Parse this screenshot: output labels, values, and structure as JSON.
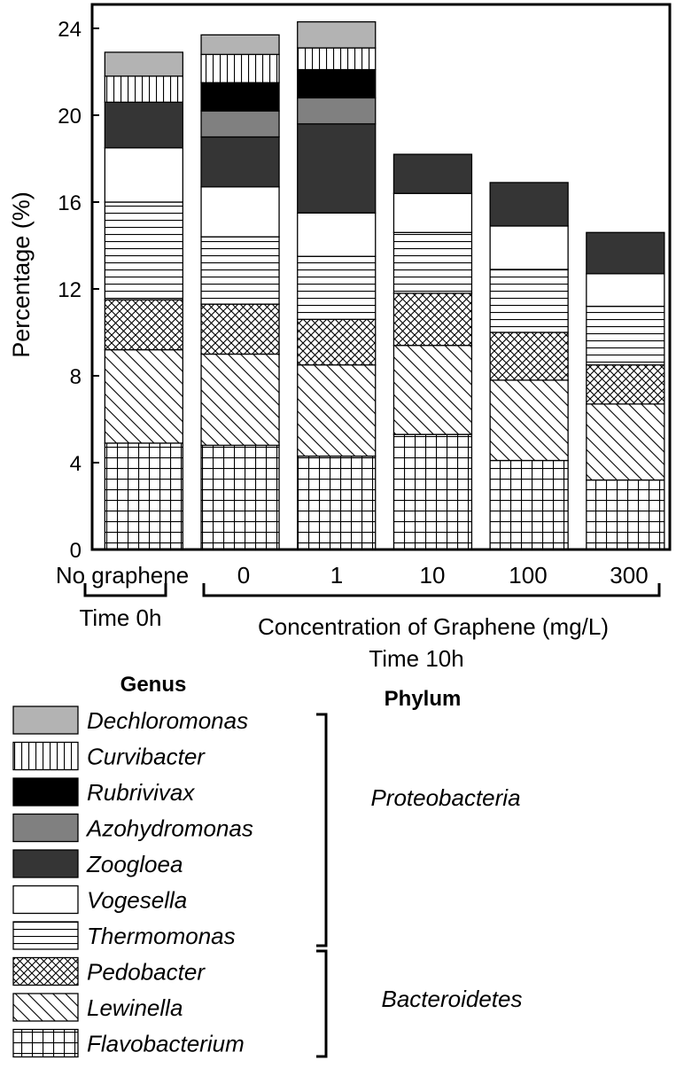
{
  "chart_data": {
    "type": "bar",
    "stacked": true,
    "categories": [
      "No graphene",
      "0",
      "1",
      "10",
      "100",
      "300"
    ],
    "ylabel": "Percentage (%)",
    "ylim": [
      0,
      24.5
    ],
    "yticks": [
      0,
      4,
      8,
      12,
      16,
      20,
      24
    ],
    "group_labels": [
      {
        "label": "Time 0h",
        "categories": [
          "No graphene"
        ]
      },
      {
        "label": "Concentration of Graphene (mg/L)",
        "sublabel": "Time 10h",
        "categories": [
          "0",
          "1",
          "10",
          "100",
          "300"
        ]
      }
    ],
    "series": [
      {
        "name": "Flavobacterium",
        "fill": "grid",
        "values": [
          4.9,
          4.8,
          4.3,
          5.3,
          4.1,
          3.2
        ]
      },
      {
        "name": "Lewinella",
        "fill": "diag",
        "values": [
          4.3,
          4.2,
          4.2,
          4.1,
          3.7,
          3.5
        ]
      },
      {
        "name": "Pedobacter",
        "fill": "cross",
        "values": [
          2.3,
          2.3,
          2.1,
          2.4,
          2.2,
          1.8
        ]
      },
      {
        "name": "Thermomonas",
        "fill": "hlines",
        "values": [
          4.5,
          3.1,
          2.9,
          2.8,
          2.9,
          2.7
        ]
      },
      {
        "name": "Vogesella",
        "fill": "#ffffff",
        "values": [
          2.5,
          2.3,
          2.0,
          1.8,
          2.0,
          1.5
        ]
      },
      {
        "name": "Zoogloea",
        "fill": "#353535",
        "values": [
          2.1,
          2.3,
          4.1,
          1.8,
          2.0,
          1.9
        ]
      },
      {
        "name": "Azohydromonas",
        "fill": "#808080",
        "values": [
          0,
          1.2,
          1.2,
          0,
          0,
          0
        ]
      },
      {
        "name": "Rubrivivax",
        "fill": "#000000",
        "values": [
          0,
          1.3,
          1.3,
          0,
          0,
          0
        ]
      },
      {
        "name": "Curvibacter",
        "fill": "vlines",
        "values": [
          1.2,
          1.3,
          1.0,
          0,
          0,
          0
        ]
      },
      {
        "name": "Dechloromonas",
        "fill": "#b3b3b3",
        "values": [
          1.1,
          0.9,
          1.2,
          0,
          0,
          0
        ]
      }
    ],
    "legend": {
      "title": "Genus",
      "phylum_title": "Phylum",
      "placement": "bottom-left",
      "phyla": [
        {
          "name": "Proteobacteria",
          "members": [
            "Dechloromonas",
            "Curvibacter",
            "Rubrivivax",
            "Azohydromonas",
            "Zoogloea",
            "Vogesella",
            "Thermomonas"
          ]
        },
        {
          "name": "Bacteroidetes",
          "members": [
            "Pedobacter",
            "Lewinella",
            "Flavobacterium"
          ]
        }
      ]
    }
  }
}
